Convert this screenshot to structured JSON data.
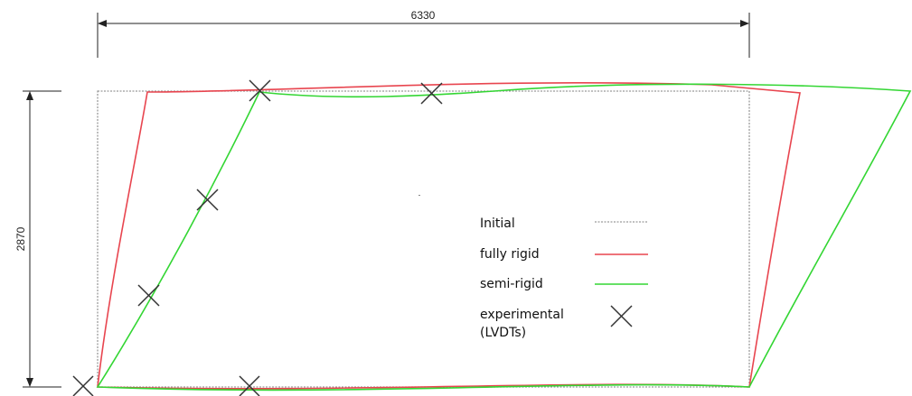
{
  "dimensions": {
    "width_label": "6330",
    "height_label": "2870"
  },
  "legend": {
    "items": [
      {
        "label": "Initial",
        "style": "dotted",
        "color": "#9a9a9a"
      },
      {
        "label": "fully rigid",
        "style": "solid",
        "color": "#e8454f"
      },
      {
        "label": "semi-rigid",
        "style": "solid",
        "color": "#33d633"
      },
      {
        "label": "experimental",
        "label2": "(LVDTs)",
        "style": "cross",
        "color": "#222222"
      }
    ]
  },
  "colors": {
    "dimension_line": "#222222",
    "initial": "#9a9a9a",
    "fully_rigid": "#e8454f",
    "semi_rigid": "#33d633",
    "marker": "#222222"
  }
}
